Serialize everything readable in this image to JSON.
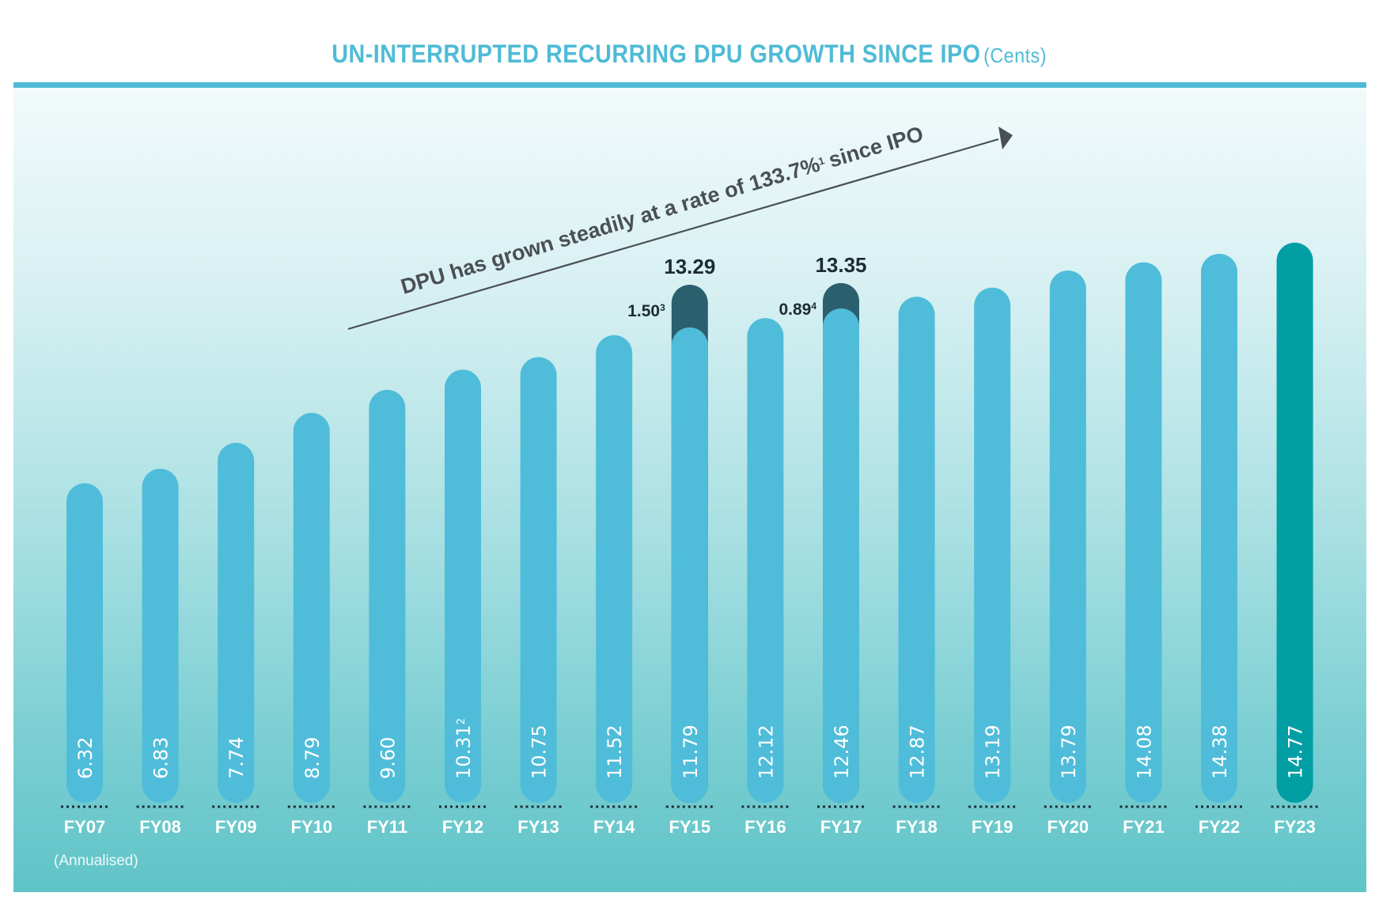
{
  "header": {
    "title": "UN-INTERRUPTED RECURRING DPU GROWTH SINCE IPO",
    "unit": "(Cents)"
  },
  "colors": {
    "accent": "#4fbbd6",
    "bar": "#4fbdd9",
    "highlight_bar": "#019ea4",
    "special_segment": "#2a5f6e",
    "text_dark": "#1d2b33"
  },
  "chart_data": {
    "type": "bar",
    "title": "UN-INTERRUPTED RECURRING DPU GROWTH SINCE IPO (Cents)",
    "xlabel": "",
    "ylabel": "DPU (Cents)",
    "grid": false,
    "categories": [
      "FY07",
      "FY08",
      "FY09",
      "FY10",
      "FY11",
      "FY12",
      "FY13",
      "FY14",
      "FY15",
      "FY16",
      "FY17",
      "FY18",
      "FY19",
      "FY20",
      "FY21",
      "FY22",
      "FY23"
    ],
    "values": [
      6.32,
      6.83,
      7.74,
      8.79,
      9.6,
      10.31,
      10.75,
      11.52,
      11.79,
      12.12,
      12.46,
      12.87,
      13.19,
      13.79,
      14.08,
      14.38,
      14.77
    ],
    "value_labels": [
      "6.32",
      "6.83",
      "7.74",
      "8.79",
      "9.60",
      "10.31",
      "10.75",
      "11.52",
      "11.79",
      "12.12",
      "12.46",
      "12.87",
      "13.19",
      "13.79",
      "14.08",
      "14.38",
      "14.77"
    ],
    "value_footnotes": {
      "FY12": "2"
    },
    "highlight_category": "FY23",
    "stacked_extras": [
      {
        "category": "FY15",
        "extra": 1.5,
        "extra_label": "1.50",
        "footnote": "3",
        "total": 13.29,
        "total_label": "13.29"
      },
      {
        "category": "FY17",
        "extra": 0.89,
        "extra_label": "0.89",
        "footnote": "4",
        "total": 13.35,
        "total_label": "13.35"
      }
    ],
    "annotation": {
      "text": "DPU has grown steadily at a rate of 133.7%",
      "footnote": "1",
      "suffix": "since IPO",
      "arrow": "up-right"
    },
    "notes": [
      "(Annualised)"
    ]
  }
}
